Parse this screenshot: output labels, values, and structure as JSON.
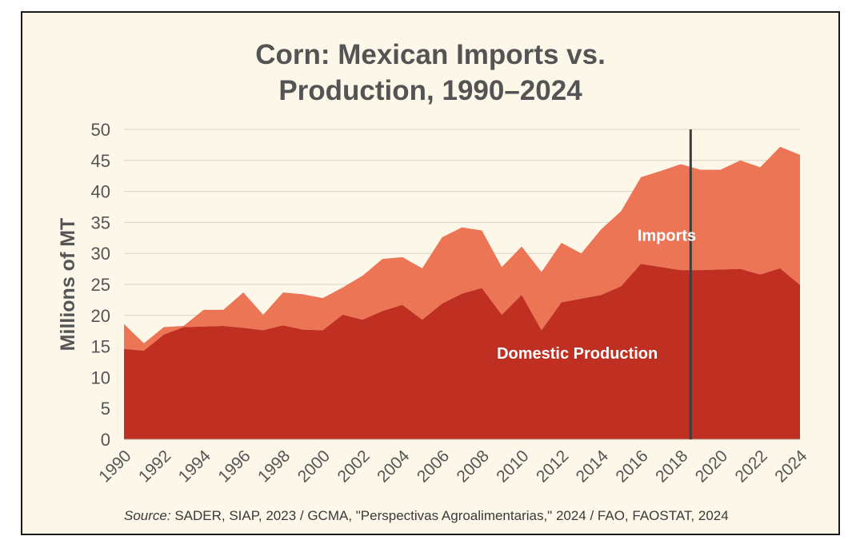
{
  "chart_data": {
    "type": "area",
    "stacked": true,
    "title_lines": [
      "Corn: Mexican Imports vs.",
      "Production, 1990–2024"
    ],
    "ylabel": "Millions of MT",
    "xlabel": "",
    "ylim": [
      0,
      50
    ],
    "yticks": [
      "0",
      "5",
      "10",
      "15",
      "20",
      "25",
      "30",
      "35",
      "40",
      "45",
      "50"
    ],
    "xticks": [
      "1990",
      "1992",
      "1994",
      "1996",
      "1998",
      "2000",
      "2002",
      "2004",
      "2006",
      "2008",
      "2010",
      "2012",
      "2014",
      "2016",
      "2018",
      "2020",
      "2022",
      "2024"
    ],
    "grid": true,
    "x": [
      1990,
      1991,
      1992,
      1993,
      1994,
      1995,
      1996,
      1997,
      1998,
      1999,
      2000,
      2001,
      2002,
      2003,
      2004,
      2005,
      2006,
      2007,
      2008,
      2009,
      2010,
      2011,
      2012,
      2013,
      2014,
      2015,
      2016,
      2017,
      2018,
      2019,
      2020,
      2021,
      2022,
      2023,
      2024
    ],
    "series": [
      {
        "name": "Domestic Production",
        "color": "#c03022",
        "values": [
          14.6,
          14.3,
          16.9,
          18.1,
          18.2,
          18.3,
          18.0,
          17.6,
          18.4,
          17.7,
          17.6,
          20.1,
          19.3,
          20.7,
          21.7,
          19.3,
          21.9,
          23.5,
          24.4,
          20.1,
          23.3,
          17.6,
          22.1,
          22.7,
          23.3,
          24.7,
          28.3,
          27.8,
          27.3,
          27.3,
          27.4,
          27.5,
          26.6,
          27.6,
          24.9
        ]
      },
      {
        "name": "Imports",
        "color": "#ec7556",
        "values": [
          4.0,
          1.2,
          1.2,
          0.2,
          2.7,
          2.6,
          5.7,
          2.5,
          5.3,
          5.7,
          5.2,
          4.4,
          7.1,
          8.4,
          7.7,
          8.3,
          10.7,
          10.7,
          9.3,
          7.7,
          7.8,
          9.4,
          9.6,
          7.3,
          10.6,
          12.1,
          14.0,
          15.5,
          17.1,
          16.2,
          16.1,
          17.5,
          17.3,
          19.6,
          21.0
        ]
      }
    ],
    "annotations": [
      {
        "text": "Imports",
        "x": 2017.3,
        "y": 32
      },
      {
        "text": "Domestic Production",
        "x": 2012.8,
        "y": 13
      }
    ],
    "vertical_line_x": 2018.5,
    "source_label": "Source:",
    "source_text": " SADER, SIAP, 2023 / GCMA, \"Perspectivas Agroalimentarias,\" 2024 / FAO, FAOSTAT, 2024"
  },
  "colors": {
    "background": "#fdf7ea",
    "production": "#c03022",
    "imports": "#ec7556",
    "grid": "#d9d3c6",
    "axis_text": "#555555",
    "marker_line": "#3d3d3d"
  }
}
